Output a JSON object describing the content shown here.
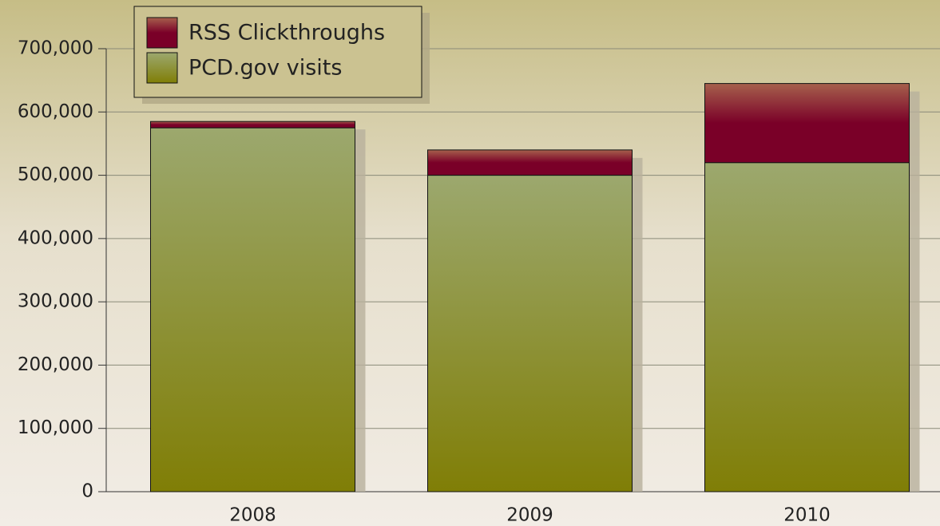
{
  "chart_data": {
    "type": "bar",
    "stacked": true,
    "categories": [
      "2008",
      "2009",
      "2010"
    ],
    "series": [
      {
        "name": "PCD.gov visits",
        "color": "#868510",
        "values": [
          575000,
          500000,
          520000
        ]
      },
      {
        "name": "RSS Clickthroughs",
        "color": "#7a0a28",
        "values": [
          10000,
          40000,
          125000
        ]
      }
    ],
    "ylim": [
      0,
      700000
    ],
    "yticks": [
      0,
      {
        "value": 100000,
        "label": "100,000"
      },
      {
        "value": 200000,
        "label": "200,000"
      },
      {
        "value": 300000,
        "label": "300,000"
      },
      {
        "value": 400000,
        "label": "400,000"
      },
      {
        "value": 500000,
        "label": "500,000"
      },
      {
        "value": 600000,
        "label": "600,000"
      },
      {
        "value": 700000,
        "label": "700,000"
      }
    ],
    "grid": true,
    "legend": "top-left"
  }
}
